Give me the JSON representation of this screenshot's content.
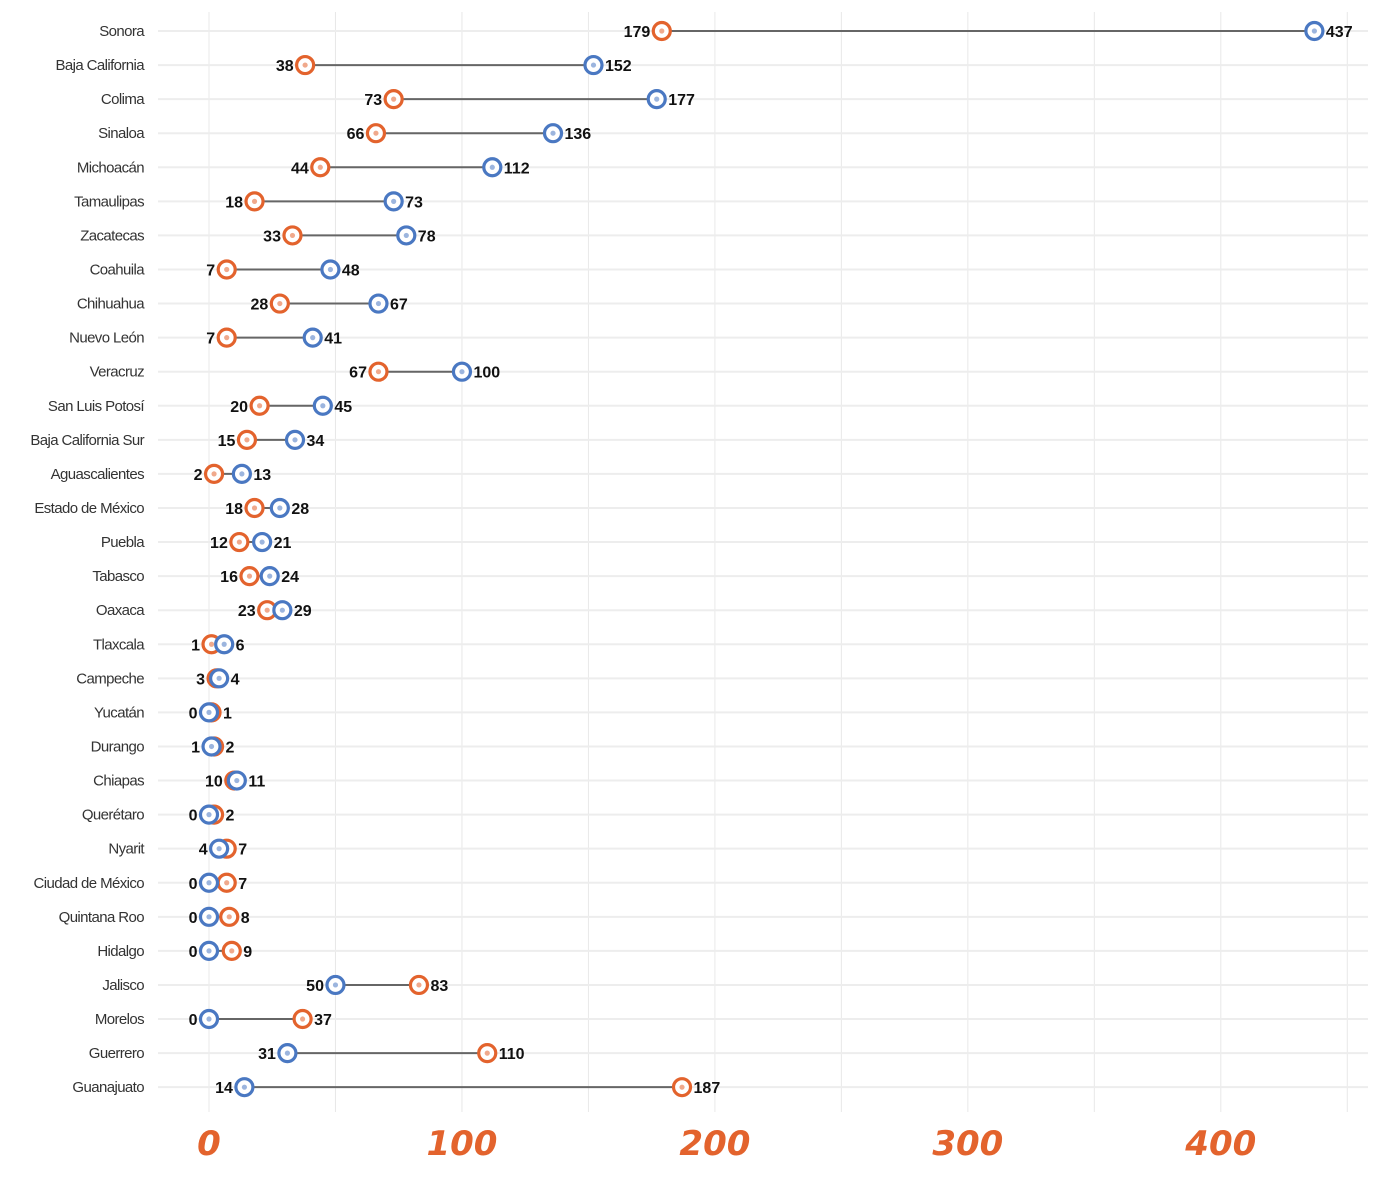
{
  "colors": {
    "series_a": "#4a78c2",
    "series_b": "#e3632d"
  },
  "chart_data": {
    "type": "dumbbell",
    "title": "",
    "xlabel": "",
    "ylabel": "",
    "xlim": [
      0,
      450
    ],
    "xticks": [
      0,
      100,
      200,
      300,
      400
    ],
    "grid": true,
    "series": [
      {
        "color": "#4a78c2",
        "marker": "blue-circle"
      },
      {
        "color": "#e3632d",
        "marker": "orange-circle"
      }
    ],
    "categories": [
      "Sonora",
      "Baja California",
      "Colima",
      "Sinaloa",
      "Michoacán",
      "Tamaulipas",
      "Zacatecas",
      "Coahuila",
      "Chihuahua",
      "Nuevo León",
      "Veracruz",
      "San Luis Potosí",
      "Baja California Sur",
      "Aguascalientes",
      "Estado de México",
      "Puebla",
      "Tabasco",
      "Oaxaca",
      "Tlaxcala",
      "Campeche",
      "Yucatán",
      "Durango",
      "Chiapas",
      "Querétaro",
      "Nyarit",
      "Ciudad de México",
      "Quintana Roo",
      "Hidalgo",
      "Jalisco",
      "Morelos",
      "Guerrero",
      "Guanajuato"
    ],
    "blue_values": [
      437,
      152,
      177,
      136,
      112,
      73,
      78,
      48,
      67,
      41,
      100,
      45,
      34,
      13,
      28,
      21,
      24,
      29,
      6,
      4,
      0,
      1,
      11,
      0,
      4,
      0,
      0,
      0,
      50,
      0,
      31,
      14
    ],
    "orange_values": [
      179,
      38,
      73,
      66,
      44,
      18,
      33,
      7,
      28,
      7,
      67,
      20,
      15,
      2,
      18,
      12,
      16,
      23,
      1,
      3,
      1,
      2,
      10,
      2,
      7,
      7,
      8,
      9,
      83,
      37,
      110,
      187
    ]
  }
}
